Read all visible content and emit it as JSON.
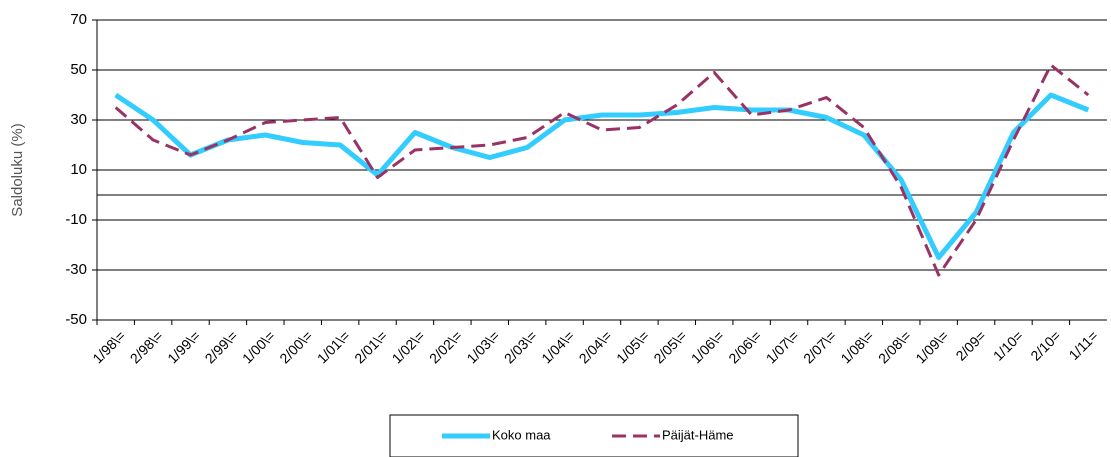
{
  "chart_data": {
    "type": "line",
    "y_label": "Saldoluku (%)",
    "categories": [
      "1/98\\=",
      "2/98\\=",
      "1/99\\=",
      "2/99\\=",
      "1/00\\=",
      "2/00\\=",
      "1/01\\=",
      "2/01\\=",
      "1/02\\=",
      "2/02\\=",
      "1/03\\=",
      "2/03\\=",
      "1/04\\=",
      "2/04\\=",
      "1/05\\=",
      "2/05\\=",
      "1/06\\=",
      "2/06\\=",
      "1/07\\=",
      "2/07\\=",
      "1/08\\=",
      "2/08\\=",
      "1/09\\=",
      "2/09=",
      "1/10=",
      "2/10=",
      "1/11="
    ],
    "series": [
      {
        "name": "Koko maa",
        "color": "#33ccff",
        "dashed": false,
        "values": [
          40,
          30,
          16,
          22,
          24,
          21,
          20,
          8,
          25,
          19,
          15,
          19,
          30,
          32,
          32,
          33,
          35,
          34,
          34,
          31,
          24,
          6,
          -25,
          -7,
          25,
          40,
          34
        ]
      },
      {
        "name": "Päijät-Häme",
        "color": "#993366",
        "dashed": true,
        "values": [
          35,
          22,
          16,
          22,
          29,
          30,
          31,
          7,
          18,
          19,
          20,
          23,
          33,
          26,
          27,
          36,
          49,
          32,
          34,
          39,
          27,
          3,
          -32,
          -10,
          22,
          52,
          40
        ]
      }
    ],
    "ylim": [
      -50,
      70
    ],
    "yticks": [
      70,
      50,
      30,
      10,
      -10,
      -30,
      -50
    ],
    "grid": true,
    "legend": "bottom"
  }
}
